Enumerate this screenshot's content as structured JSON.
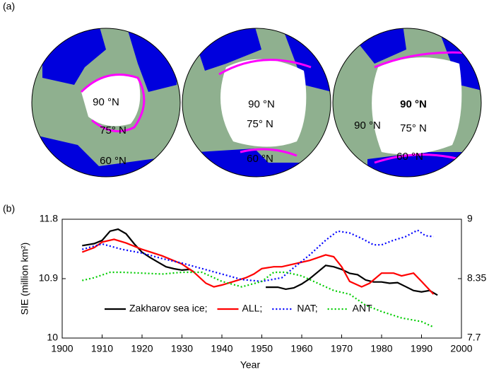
{
  "panel_a": {
    "label": "(a)",
    "maps": [
      {
        "labels": [
          "90 °N",
          "75° N",
          "60 °N"
        ]
      },
      {
        "labels": [
          "90 °N",
          "75° N",
          "60 °N"
        ]
      },
      {
        "labels": [
          "90 °N",
          "90 °N",
          "75° N",
          "60 °N"
        ]
      }
    ]
  },
  "chart_data": {
    "type": "line",
    "panel_label": "(b)",
    "x_label": "Year",
    "y_label": "SIE (million km²)",
    "xlim": [
      1900,
      2000
    ],
    "xticks": [
      1900,
      1910,
      1920,
      1930,
      1940,
      1950,
      1960,
      1970,
      1980,
      1990,
      2000
    ],
    "ylim": [
      10,
      11.8
    ],
    "yticks": [
      10,
      10.9,
      11.8
    ],
    "y2lim": [
      7.7,
      9
    ],
    "y2ticks": [
      7.7,
      8.35,
      9
    ],
    "legend": "lower center",
    "series": [
      {
        "name": "Zakharov sea ice;",
        "color": "#000000",
        "style": "solid",
        "x": [
          1905,
          1908,
          1910,
          1912,
          1914,
          1916,
          1918,
          1920,
          1922,
          1924,
          1926,
          1928,
          1930,
          1932,
          1933,
          1942,
          1951,
          1954,
          1956,
          1958,
          1960,
          1962,
          1964,
          1966,
          1968,
          1970,
          1972,
          1974,
          1976,
          1978,
          1980,
          1982,
          1984,
          1986,
          1988,
          1990,
          1992,
          1994
        ],
        "values": [
          11.4,
          11.43,
          11.48,
          11.62,
          11.65,
          11.58,
          11.43,
          11.3,
          11.22,
          11.15,
          11.08,
          11.05,
          11.03,
          11.04,
          11.0,
          null,
          10.77,
          10.77,
          10.74,
          10.76,
          10.82,
          10.9,
          11.0,
          11.1,
          11.08,
          11.04,
          10.98,
          10.96,
          10.88,
          10.85,
          10.85,
          10.83,
          10.84,
          10.78,
          10.72,
          10.7,
          10.72,
          10.65
        ]
      },
      {
        "name": "ALL;",
        "color": "#ff0000",
        "style": "solid",
        "axis": "y2",
        "x": [
          1905,
          1908,
          1910,
          1913,
          1916,
          1920,
          1925,
          1930,
          1933,
          1936,
          1938,
          1940,
          1943,
          1946,
          1948,
          1950,
          1953,
          1955,
          1958,
          1962,
          1966,
          1968,
          1970,
          1972,
          1975,
          1977,
          1980,
          1983,
          1985,
          1988,
          1990,
          1993
        ],
        "values": [
          8.64,
          8.69,
          8.75,
          8.78,
          8.74,
          8.67,
          8.6,
          8.51,
          8.42,
          8.3,
          8.26,
          8.28,
          8.32,
          8.36,
          8.4,
          8.46,
          8.48,
          8.48,
          8.51,
          8.55,
          8.61,
          8.59,
          8.48,
          8.32,
          8.26,
          8.3,
          8.41,
          8.41,
          8.38,
          8.41,
          8.32,
          8.18
        ]
      },
      {
        "name": "NAT;",
        "color": "#0000ff",
        "style": "dotted",
        "axis": "y2",
        "x": [
          1905,
          1910,
          1915,
          1920,
          1925,
          1930,
          1935,
          1940,
          1945,
          1950,
          1955,
          1958,
          1962,
          1966,
          1969,
          1972,
          1975,
          1978,
          1980,
          1983,
          1986,
          1989,
          1991,
          1993
        ],
        "values": [
          8.67,
          8.73,
          8.67,
          8.63,
          8.57,
          8.52,
          8.46,
          8.4,
          8.34,
          8.32,
          8.36,
          8.47,
          8.61,
          8.77,
          8.87,
          8.85,
          8.79,
          8.72,
          8.72,
          8.77,
          8.81,
          8.88,
          8.82,
          8.81
        ]
      },
      {
        "name": "ANT",
        "color": "#00cc00",
        "style": "dotted",
        "axis": "y2",
        "x": [
          1905,
          1908,
          1912,
          1915,
          1920,
          1925,
          1930,
          1935,
          1940,
          1945,
          1950,
          1953,
          1956,
          1960,
          1964,
          1968,
          1972,
          1976,
          1980,
          1985,
          1990,
          1993
        ],
        "values": [
          8.33,
          8.36,
          8.42,
          8.42,
          8.41,
          8.4,
          8.42,
          8.42,
          8.32,
          8.26,
          8.32,
          8.42,
          8.42,
          8.38,
          8.3,
          8.22,
          8.18,
          8.06,
          7.99,
          7.92,
          7.88,
          7.82
        ]
      }
    ]
  }
}
